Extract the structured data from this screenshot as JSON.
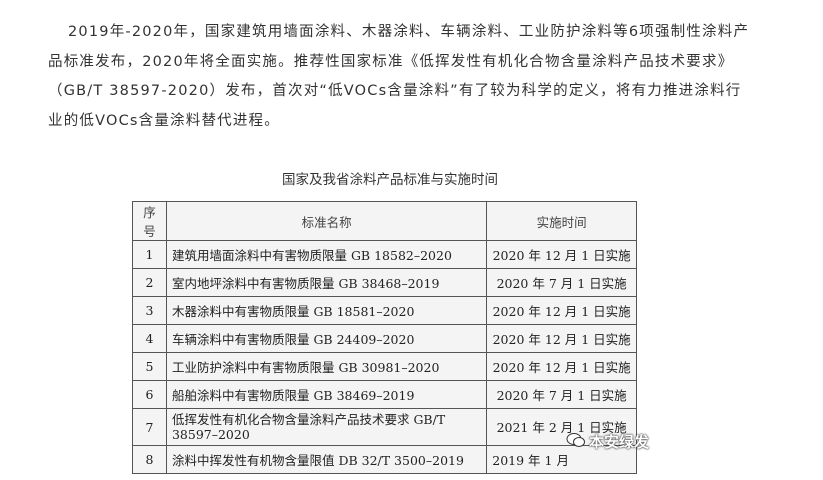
{
  "paragraph": "2019年-2020年，国家建筑用墙面涂料、木器涂料、车辆涂料、工业防护涂料等6项强制性涂料产品标准发布，2020年将全面实施。推荐性国家标准《低挥发性有机化合物含量涂料产品技术要求》（GB/T 38597-2020）发布，首次对“低VOCs含量涂料”有了较为科学的定义，将有力推进涂料行业的低VOCs含量涂料替代进程。",
  "caption": "国家及我省涂料产品标准与实施时间",
  "table": {
    "headers": [
      "序号",
      "标准名称",
      "实施时间"
    ],
    "rows": [
      [
        "1",
        "建筑用墙面涂料中有害物质限量 GB 18582–2020",
        "2020 年 12 月 1 日实施"
      ],
      [
        "2",
        "室内地坪涂料中有害物质限量  GB 38468–2019",
        "2020 年 7 月 1 日实施"
      ],
      [
        "3",
        "木器涂料中有害物质限量 GB 18581–2020",
        "2020 年 12 月 1 日实施"
      ],
      [
        "4",
        "车辆涂料中有害物质限量  GB 24409–2020",
        "2020 年 12 月 1 日实施"
      ],
      [
        "5",
        "工业防护涂料中有害物质限量  GB 30981–2020",
        "2020 年 12 月 1 日实施"
      ],
      [
        "6",
        "船舶涂料中有害物质限量 GB 38469–2019",
        "2020 年 7 月 1 日实施"
      ],
      [
        "7",
        "低挥发性有机化合物含量涂料产品技术要求 GB/T 38597–2020",
        "2021 年 2 月 1 日实施"
      ],
      [
        "8",
        "涂料中挥发性有机物含量限值 DB 32/T 3500–2019",
        "2019 年 1 月"
      ]
    ]
  },
  "watermark": {
    "text": "本安绿发",
    "icon": "wechat-icon"
  }
}
